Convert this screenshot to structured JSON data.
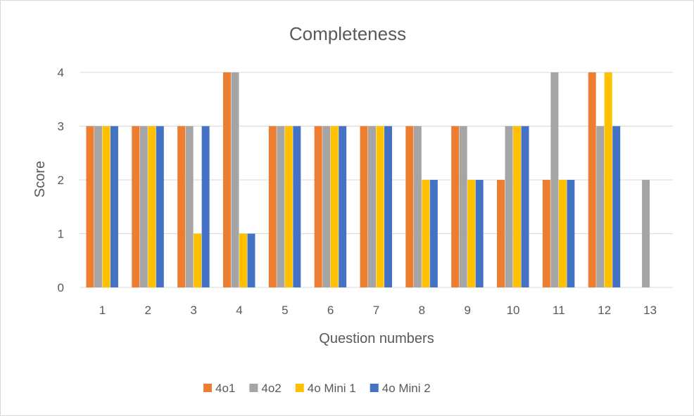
{
  "chart_data": {
    "type": "bar",
    "title": "Completeness",
    "xlabel": "Question numbers",
    "ylabel": "Score",
    "ylim": [
      0,
      4
    ],
    "yticks": [
      0,
      1,
      2,
      3,
      4
    ],
    "grid": true,
    "legend_position": "bottom",
    "categories": [
      "1",
      "2",
      "3",
      "4",
      "5",
      "6",
      "7",
      "8",
      "9",
      "10",
      "11",
      "12",
      "13"
    ],
    "series": [
      {
        "name": "4o1",
        "color": "#ed7d31",
        "values": [
          3,
          3,
          3,
          4,
          3,
          3,
          3,
          3,
          3,
          2,
          2,
          4,
          null
        ]
      },
      {
        "name": "4o2",
        "color": "#a5a5a5",
        "values": [
          3,
          3,
          3,
          4,
          3,
          3,
          3,
          3,
          3,
          3,
          4,
          3,
          2
        ]
      },
      {
        "name": "4o Mini 1",
        "color": "#ffc000",
        "values": [
          3,
          3,
          1,
          1,
          3,
          3,
          3,
          2,
          2,
          3,
          2,
          4,
          null
        ]
      },
      {
        "name": "4o Mini 2",
        "color": "#4472c4",
        "values": [
          3,
          3,
          3,
          1,
          3,
          3,
          3,
          2,
          2,
          3,
          2,
          3,
          null
        ]
      }
    ]
  }
}
